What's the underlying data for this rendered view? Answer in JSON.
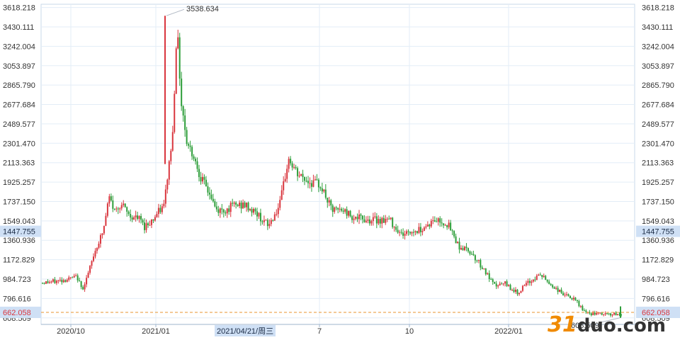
{
  "chart_data": {
    "type": "candlestick",
    "y_ticks": [
      "3618.218",
      "3430.111",
      "3242.004",
      "3053.897",
      "2865.790",
      "2677.684",
      "2489.577",
      "2301.470",
      "2113.363",
      "1925.257",
      "1737.150",
      "1549.043",
      "1360.936",
      "1172.829",
      "984.723",
      "796.616",
      "608.509"
    ],
    "y_tick_values": [
      3618.218,
      3430.111,
      3242.004,
      3053.897,
      2865.79,
      2677.684,
      2489.577,
      2301.47,
      2113.363,
      1925.257,
      1737.15,
      1549.043,
      1360.936,
      1172.829,
      984.723,
      796.616,
      608.509
    ],
    "ylim": [
      545,
      3650
    ],
    "x_ticks": [
      "2020/10",
      "2021/01",
      "7",
      "10",
      "2022/01"
    ],
    "cursor_date": "2021/04/21/周三",
    "cursor_price": "1447.755",
    "cursor_price_value": 1447.755,
    "last_price": "662.058",
    "last_price_value": 662.058,
    "max_label": "3538.634",
    "max_value": 3538.634,
    "min_label": "608.509",
    "min_value": 608.509,
    "up_color": "#d9363e",
    "down_color": "#2e9e3a",
    "price_path": [
      {
        "t": 0.0,
        "v": 950
      },
      {
        "t": 0.02,
        "v": 960
      },
      {
        "t": 0.04,
        "v": 980
      },
      {
        "t": 0.06,
        "v": 1005
      },
      {
        "t": 0.068,
        "v": 880
      },
      {
        "t": 0.08,
        "v": 1050
      },
      {
        "t": 0.09,
        "v": 1250
      },
      {
        "t": 0.105,
        "v": 1450
      },
      {
        "t": 0.115,
        "v": 1780
      },
      {
        "t": 0.125,
        "v": 1640
      },
      {
        "t": 0.135,
        "v": 1720
      },
      {
        "t": 0.15,
        "v": 1600
      },
      {
        "t": 0.17,
        "v": 1560
      },
      {
        "t": 0.175,
        "v": 1490
      },
      {
        "t": 0.19,
        "v": 1560
      },
      {
        "t": 0.21,
        "v": 1700
      },
      {
        "t": 0.225,
        "v": 2400
      },
      {
        "t": 0.232,
        "v": 3450
      },
      {
        "t": 0.24,
        "v": 2700
      },
      {
        "t": 0.25,
        "v": 2300
      },
      {
        "t": 0.26,
        "v": 2200
      },
      {
        "t": 0.275,
        "v": 1950
      },
      {
        "t": 0.29,
        "v": 1800
      },
      {
        "t": 0.3,
        "v": 1650
      },
      {
        "t": 0.315,
        "v": 1650
      },
      {
        "t": 0.33,
        "v": 1700
      },
      {
        "t": 0.35,
        "v": 1700
      },
      {
        "t": 0.37,
        "v": 1620
      },
      {
        "t": 0.39,
        "v": 1500
      },
      {
        "t": 0.41,
        "v": 1700
      },
      {
        "t": 0.425,
        "v": 2150
      },
      {
        "t": 0.44,
        "v": 2000
      },
      {
        "t": 0.46,
        "v": 1930
      },
      {
        "t": 0.48,
        "v": 1900
      },
      {
        "t": 0.5,
        "v": 1650
      },
      {
        "t": 0.52,
        "v": 1650
      },
      {
        "t": 0.54,
        "v": 1580
      },
      {
        "t": 0.56,
        "v": 1560
      },
      {
        "t": 0.6,
        "v": 1560
      },
      {
        "t": 0.62,
        "v": 1420
      },
      {
        "t": 0.65,
        "v": 1460
      },
      {
        "t": 0.68,
        "v": 1560
      },
      {
        "t": 0.7,
        "v": 1520
      },
      {
        "t": 0.72,
        "v": 1300
      },
      {
        "t": 0.74,
        "v": 1250
      },
      {
        "t": 0.76,
        "v": 1100
      },
      {
        "t": 0.78,
        "v": 920
      },
      {
        "t": 0.8,
        "v": 940
      },
      {
        "t": 0.82,
        "v": 850
      },
      {
        "t": 0.84,
        "v": 950
      },
      {
        "t": 0.86,
        "v": 1030
      },
      {
        "t": 0.88,
        "v": 920
      },
      {
        "t": 0.9,
        "v": 840
      },
      {
        "t": 0.92,
        "v": 780
      },
      {
        "t": 0.94,
        "v": 650
      },
      {
        "t": 1.0,
        "v": 640
      }
    ]
  }
}
